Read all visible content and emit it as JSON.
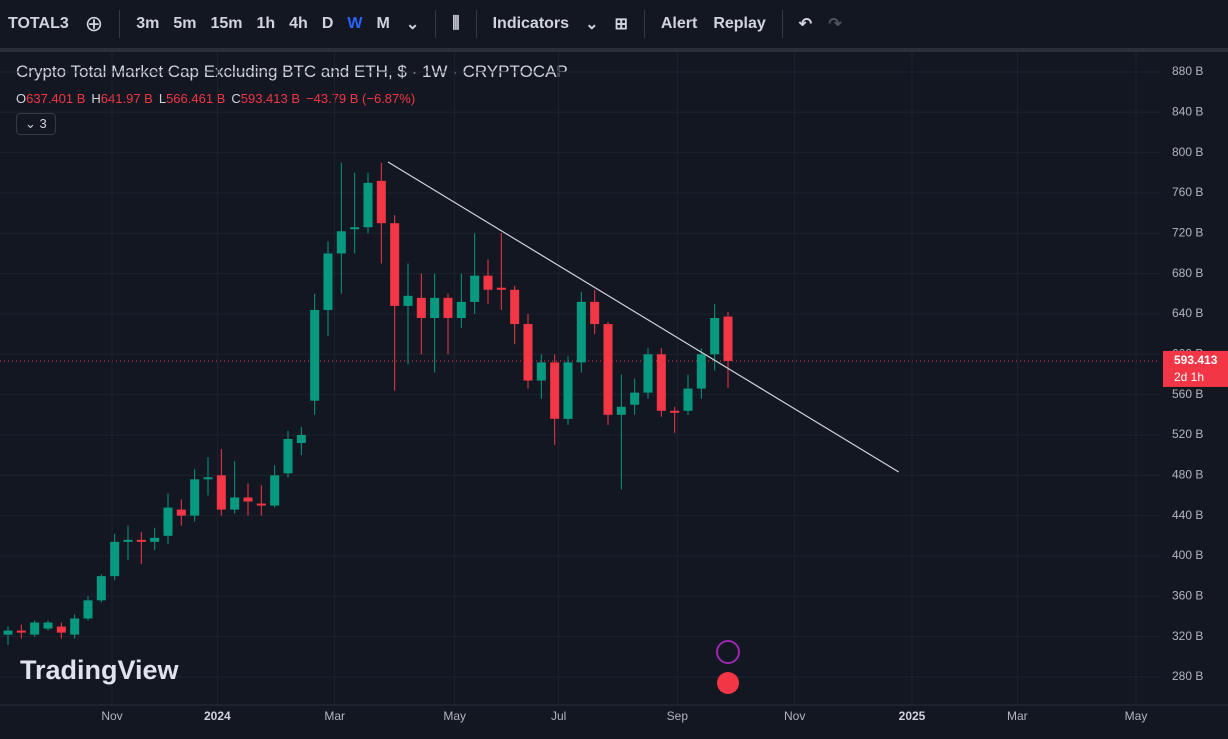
{
  "toolbar": {
    "symbol": "TOTAL3",
    "intervals": [
      "3m",
      "5m",
      "15m",
      "1h",
      "4h",
      "D",
      "W",
      "M"
    ],
    "active_interval": 6,
    "indicators": "Indicators",
    "alert": "Alert",
    "replay": "Replay"
  },
  "legend": {
    "title": "Crypto Total Market Cap Excluding BTC and ETH, $ · 1W · CRYPTOCAP",
    "ohlc": [
      {
        "label": "O",
        "value": "637.401 B"
      },
      {
        "label": "H",
        "value": "641.97 B"
      },
      {
        "label": "L",
        "value": "566.461 B"
      },
      {
        "label": "C",
        "value": "593.413 B"
      }
    ],
    "change": "−43.79 B (−6.87%)",
    "indicator_count": "3"
  },
  "watermark": "TradingView",
  "chart_data": {
    "type": "candlestick",
    "up_color": "#089981",
    "down_color": "#f23645",
    "open": [
      322,
      326,
      322,
      328,
      330,
      322,
      338,
      356,
      380,
      414,
      416,
      414,
      420,
      446,
      440,
      476,
      480,
      446,
      458,
      452,
      450,
      482,
      512,
      554,
      644,
      700,
      724,
      726,
      772,
      730,
      648,
      656,
      636,
      656,
      636,
      652,
      678,
      666,
      664,
      630,
      574,
      592,
      536,
      592,
      652,
      630,
      540,
      550,
      562,
      600,
      544,
      544,
      566,
      600,
      637.401
    ],
    "high": [
      330,
      332,
      336,
      336,
      334,
      342,
      360,
      382,
      422,
      430,
      424,
      428,
      462,
      456,
      486,
      498,
      506,
      494,
      472,
      470,
      490,
      524,
      528,
      660,
      712,
      790,
      780,
      780,
      790,
      738,
      690,
      680,
      680,
      660,
      680,
      720,
      694,
      720,
      668,
      640,
      600,
      600,
      598,
      662,
      664,
      632,
      580,
      576,
      606,
      606,
      548,
      580,
      606,
      650,
      641.97
    ],
    "low": [
      312,
      318,
      320,
      326,
      318,
      318,
      336,
      354,
      376,
      396,
      392,
      406,
      412,
      430,
      434,
      460,
      440,
      442,
      440,
      440,
      448,
      478,
      500,
      540,
      618,
      660,
      700,
      720,
      690,
      564,
      590,
      600,
      582,
      600,
      626,
      640,
      650,
      644,
      610,
      566,
      556,
      510,
      530,
      582,
      620,
      530,
      466,
      540,
      556,
      538,
      522,
      540,
      556,
      584,
      566.461
    ],
    "close": [
      326,
      324,
      334,
      334,
      324,
      338,
      356,
      380,
      414,
      416,
      414,
      418,
      448,
      440,
      476,
      478,
      446,
      458,
      454,
      450,
      480,
      516,
      520,
      644,
      700,
      722,
      726,
      770,
      730,
      648,
      658,
      636,
      656,
      636,
      652,
      678,
      664,
      664,
      630,
      574,
      592,
      536,
      592,
      652,
      630,
      540,
      548,
      562,
      600,
      544,
      542,
      566,
      600,
      636,
      593.413
    ],
    "xlim": [
      -0.6,
      86.4
    ],
    "xticks": [
      {
        "value": 7.8,
        "label": "Nov"
      },
      {
        "value": 15.7,
        "label": "2024"
      },
      {
        "value": 24.5,
        "label": "Mar"
      },
      {
        "value": 33.5,
        "label": "May"
      },
      {
        "value": 41.3,
        "label": "Jul"
      },
      {
        "value": 50.2,
        "label": "Sep"
      },
      {
        "value": 59,
        "label": "Nov"
      },
      {
        "value": 67.8,
        "label": "2025"
      },
      {
        "value": 75.7,
        "label": "Mar"
      },
      {
        "value": 84.6,
        "label": "May"
      }
    ],
    "ylim": [
      252.2,
      899.8
    ],
    "yticks": [
      {
        "value": 280,
        "label": "280 B"
      },
      {
        "value": 320,
        "label": "320 B"
      },
      {
        "value": 360,
        "label": "360 B"
      },
      {
        "value": 400,
        "label": "400 B"
      },
      {
        "value": 440,
        "label": "440 B"
      },
      {
        "value": 480,
        "label": "480 B"
      },
      {
        "value": 520,
        "label": "520 B"
      },
      {
        "value": 560,
        "label": "560 B"
      },
      {
        "value": 600,
        "label": "600 B"
      },
      {
        "value": 640,
        "label": "640 B"
      },
      {
        "value": 680,
        "label": "680 B"
      },
      {
        "value": 720,
        "label": "720 B"
      },
      {
        "value": 760,
        "label": "760 B"
      },
      {
        "value": 800,
        "label": "800 B"
      },
      {
        "value": 840,
        "label": "840 B"
      },
      {
        "value": 880,
        "label": "880 B"
      }
    ],
    "grid": true,
    "trendline": {
      "x": [
        28.5,
        66.8
      ],
      "y": [
        790.7,
        483.3
      ],
      "color": "#d1d4dc"
    },
    "countdown": "2d 1h"
  }
}
